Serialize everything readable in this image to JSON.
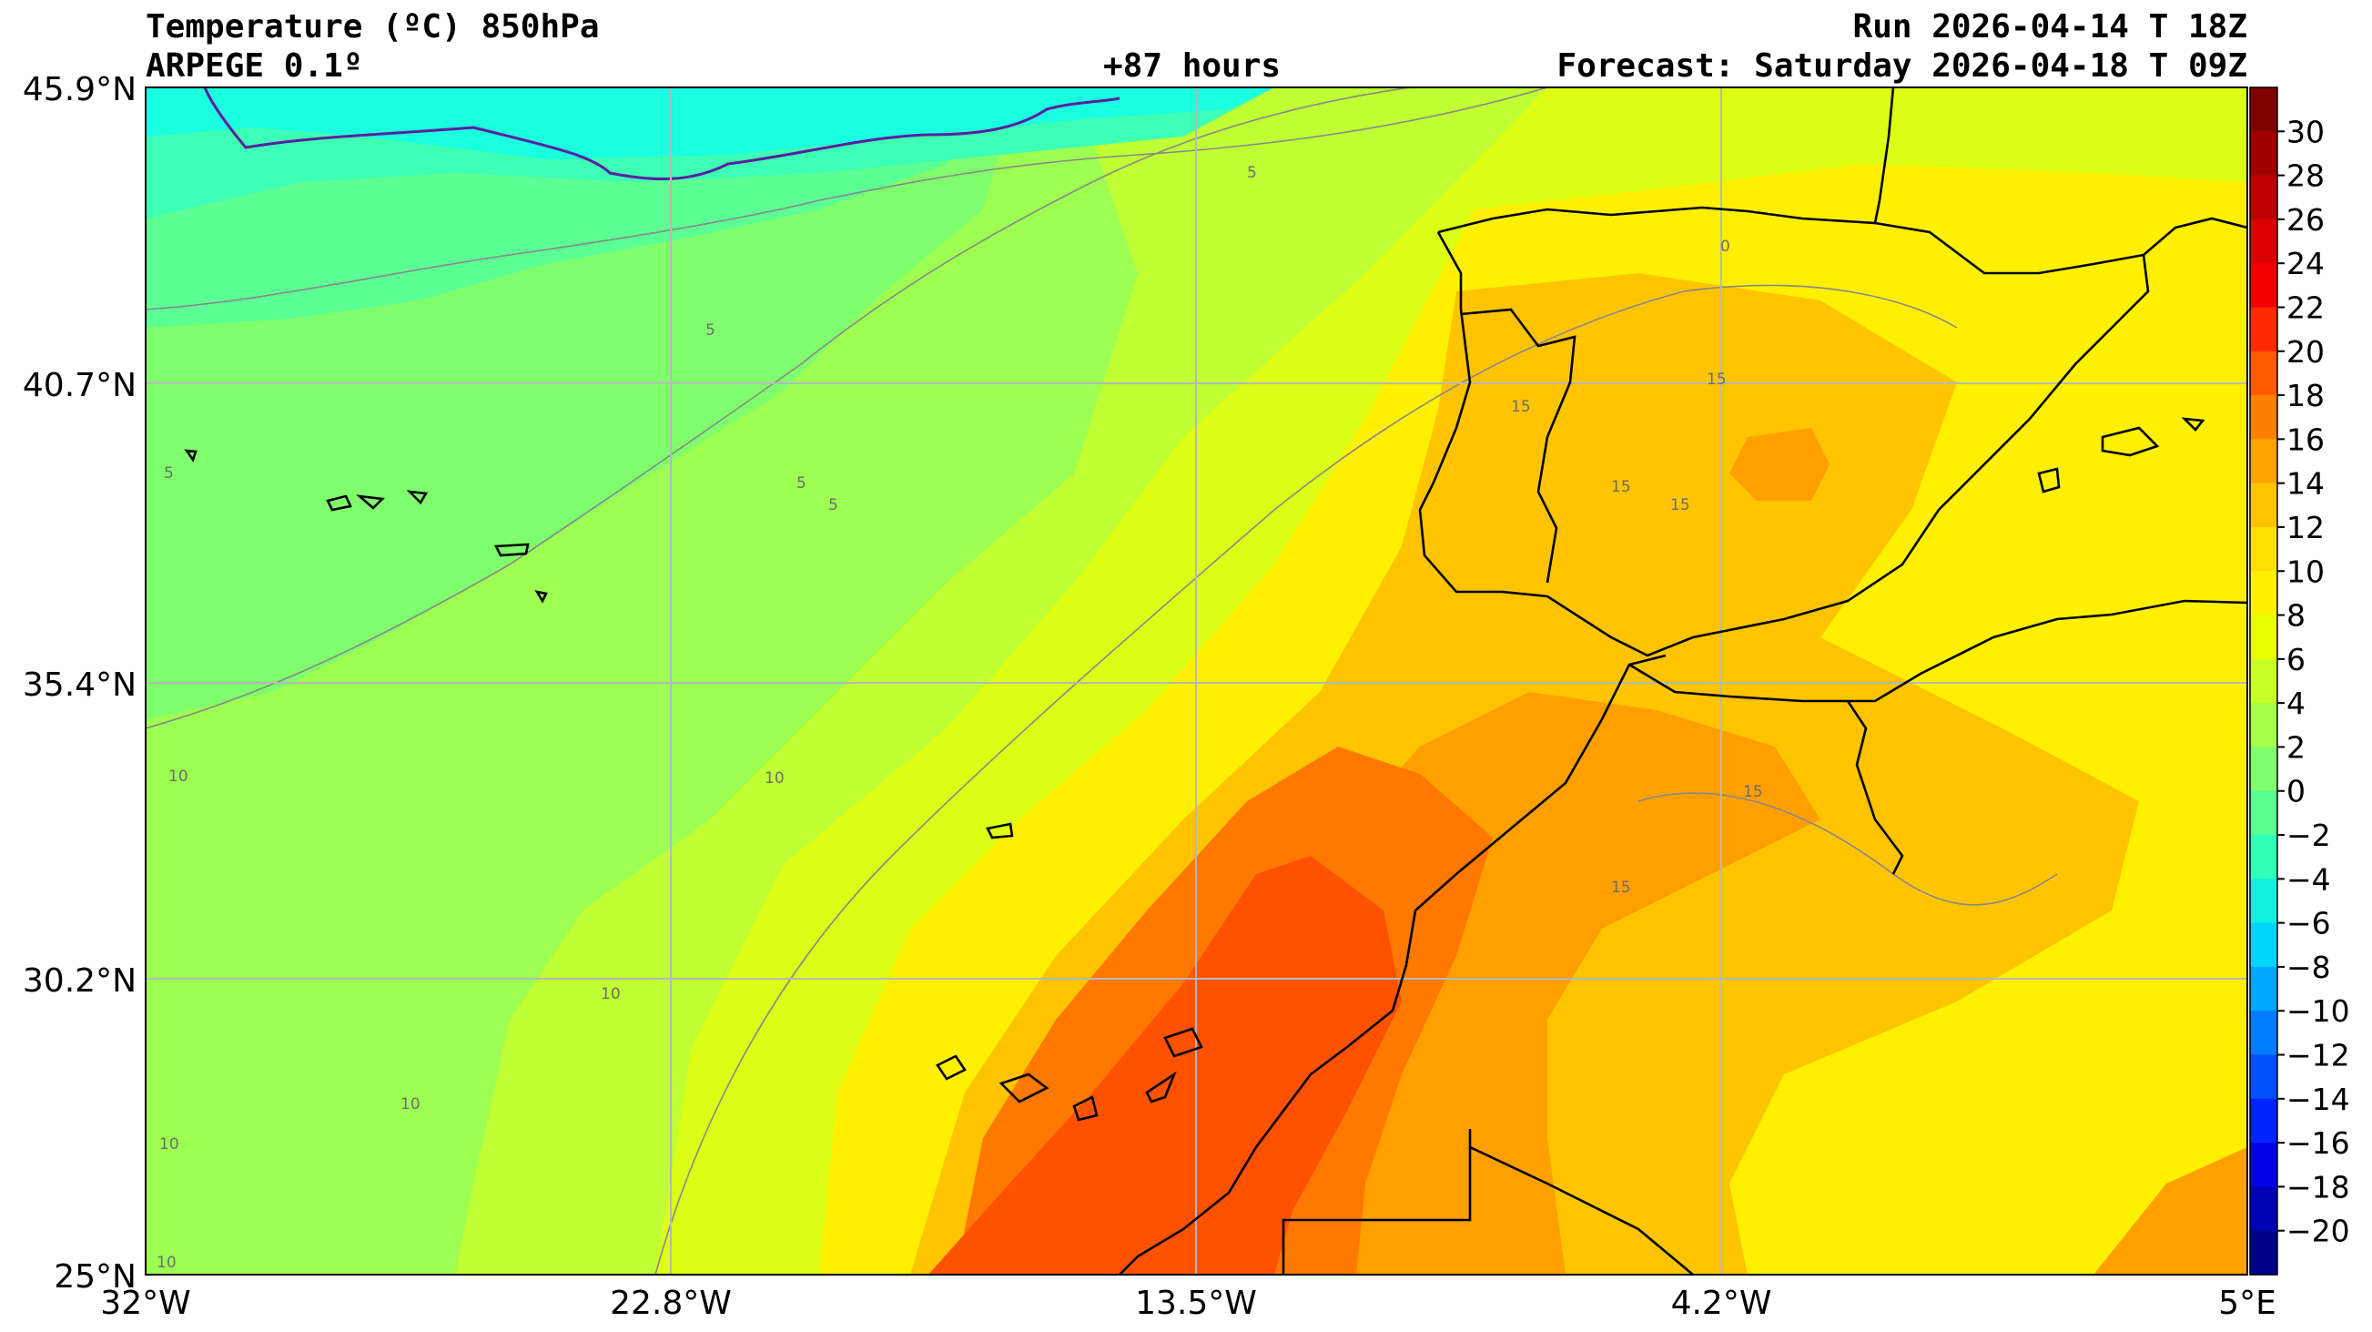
{
  "header": {
    "title": "Temperature (ºC) 850hPa",
    "model": "ARPEGE 0.1º",
    "lead_time": "+87 hours",
    "run": "Run 2026-04-14 T 18Z",
    "forecast": "Forecast: Saturday 2026-04-18 T 09Z"
  },
  "map": {
    "lat_labels": [
      "45.9°N",
      "40.7°N",
      "35.4°N",
      "30.2°N",
      "25°N"
    ],
    "lon_labels": [
      "32°W",
      "22.8°W",
      "13.5°W",
      "4.2°W",
      "5°E"
    ],
    "contour_labels": [
      "5",
      "5",
      "5",
      "5",
      "5",
      "0",
      "10",
      "10",
      "10",
      "10",
      "10",
      "10",
      "15",
      "15",
      "15",
      "15",
      "15",
      "15"
    ],
    "gridlines": true
  },
  "colorbar": {
    "unit": "ºC",
    "ticks": [
      "30",
      "28",
      "26",
      "24",
      "22",
      "20",
      "18",
      "16",
      "14",
      "12",
      "10",
      "8",
      "6",
      "4",
      "2",
      "0",
      "−2",
      "−4",
      "−6",
      "−8",
      "−10",
      "−12",
      "−14",
      "−16",
      "−18",
      "−20"
    ],
    "colors": [
      "#800000",
      "#9e0000",
      "#bd0000",
      "#dc0000",
      "#f50000",
      "#ff2a00",
      "#ff5a00",
      "#ff7f00",
      "#ffa400",
      "#ffc400",
      "#ffe000",
      "#fff200",
      "#e8ff00",
      "#c8ff27",
      "#a4ff48",
      "#7fff6d",
      "#58ff92",
      "#30ffb8",
      "#10f0e0",
      "#00d4ff",
      "#00a8ff",
      "#007cff",
      "#0050ff",
      "#0024ff",
      "#0000e8",
      "#0000b4",
      "#00008c"
    ]
  },
  "fields": {
    "colors": {
      "c0": "#1affe0",
      "c2": "#3dffb5",
      "c4": "#5cff93",
      "c6": "#7fff6d",
      "c8": "#9cff52",
      "c10": "#bfff33",
      "c12": "#dcff15",
      "c14": "#fff000",
      "c16": "#ffc400",
      "c18": "#ffa000",
      "c20": "#ff7800",
      "c22": "#ff5200"
    }
  }
}
